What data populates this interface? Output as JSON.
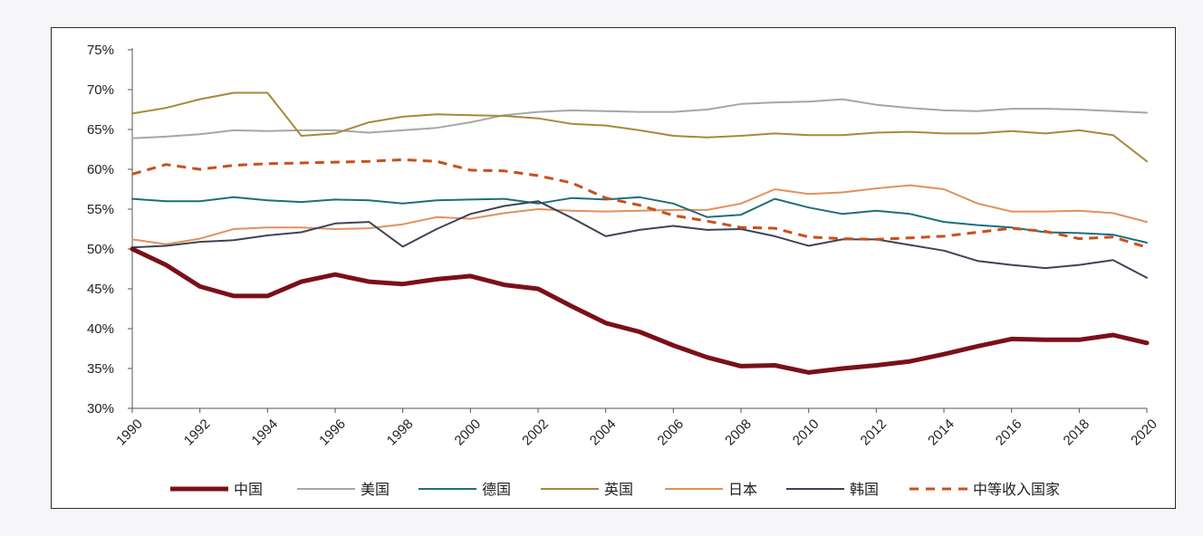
{
  "chart_data": {
    "type": "line",
    "title": "",
    "xlabel": "",
    "ylabel": "",
    "x": [
      1990,
      1991,
      1992,
      1993,
      1994,
      1995,
      1996,
      1997,
      1998,
      1999,
      2000,
      2001,
      2002,
      2003,
      2004,
      2005,
      2006,
      2007,
      2008,
      2009,
      2010,
      2011,
      2012,
      2013,
      2014,
      2015,
      2016,
      2017,
      2018,
      2019,
      2020
    ],
    "xticks": [
      "1990",
      "1992",
      "1994",
      "1996",
      "1998",
      "2000",
      "2002",
      "2004",
      "2006",
      "2008",
      "2010",
      "2012",
      "2014",
      "2016",
      "2018",
      "2020"
    ],
    "xlim": [
      1990,
      2020
    ],
    "yticks": [
      "30%",
      "35%",
      "40%",
      "45%",
      "50%",
      "55%",
      "60%",
      "65%",
      "70%",
      "75%"
    ],
    "ylim": [
      30,
      75
    ],
    "grid": false,
    "legend_position": "bottom",
    "series": [
      {
        "name": "中国",
        "color": "#7a1018",
        "width": 5,
        "dash": "",
        "values": [
          50.0,
          48.0,
          45.3,
          44.1,
          44.1,
          45.9,
          46.8,
          45.9,
          45.6,
          46.2,
          46.6,
          45.5,
          45.0,
          42.8,
          40.7,
          39.6,
          37.9,
          36.4,
          35.3,
          35.4,
          34.5,
          35.0,
          35.4,
          35.9,
          36.8,
          37.8,
          38.7,
          38.6,
          38.6,
          39.2,
          38.2
        ]
      },
      {
        "name": "美国",
        "color": "#a6a6a6",
        "width": 2,
        "dash": "",
        "values": [
          63.9,
          64.1,
          64.4,
          64.9,
          64.8,
          64.9,
          64.9,
          64.6,
          64.9,
          65.2,
          65.9,
          66.8,
          67.2,
          67.4,
          67.3,
          67.2,
          67.2,
          67.5,
          68.2,
          68.4,
          68.5,
          68.8,
          68.1,
          67.7,
          67.4,
          67.3,
          67.6,
          67.6,
          67.5,
          67.3,
          67.1
        ]
      },
      {
        "name": "德国",
        "color": "#1e6e7c",
        "width": 2,
        "dash": "",
        "values": [
          56.3,
          56.0,
          56.0,
          56.5,
          56.1,
          55.9,
          56.2,
          56.1,
          55.7,
          56.1,
          56.2,
          56.3,
          55.7,
          56.4,
          56.2,
          56.5,
          55.7,
          54.0,
          54.3,
          56.3,
          55.2,
          54.4,
          54.8,
          54.4,
          53.4,
          53.0,
          52.7,
          52.1,
          52.0,
          51.8,
          50.8
        ]
      },
      {
        "name": "英国",
        "color": "#a8893a",
        "width": 2,
        "dash": "",
        "values": [
          67.0,
          67.7,
          68.8,
          69.6,
          69.6,
          64.2,
          64.5,
          65.9,
          66.6,
          66.9,
          66.8,
          66.7,
          66.4,
          65.7,
          65.5,
          64.9,
          64.2,
          64.0,
          64.2,
          64.5,
          64.3,
          64.3,
          64.6,
          64.7,
          64.5,
          64.5,
          64.8,
          64.5,
          64.9,
          64.3,
          61.0
        ]
      },
      {
        "name": "日本",
        "color": "#e0915c",
        "width": 2,
        "dash": "",
        "values": [
          51.2,
          50.6,
          51.3,
          52.5,
          52.7,
          52.7,
          52.5,
          52.6,
          53.1,
          54.0,
          53.8,
          54.5,
          55.0,
          54.8,
          54.7,
          54.8,
          54.9,
          54.9,
          55.7,
          57.5,
          56.9,
          57.1,
          57.6,
          58.0,
          57.5,
          55.7,
          54.7,
          54.7,
          54.8,
          54.5,
          53.4
        ]
      },
      {
        "name": "韩国",
        "color": "#3d4454",
        "width": 2,
        "dash": "",
        "values": [
          50.2,
          50.4,
          50.9,
          51.1,
          51.7,
          52.1,
          53.2,
          53.4,
          50.3,
          52.5,
          54.4,
          55.4,
          56.0,
          53.9,
          51.6,
          52.4,
          52.9,
          52.4,
          52.5,
          51.6,
          50.4,
          51.2,
          51.2,
          50.5,
          49.8,
          48.5,
          48.0,
          47.6,
          48.0,
          48.6,
          46.4
        ]
      },
      {
        "name": "中等收入国家",
        "color": "#c8501c",
        "width": 3,
        "dash": "10,7",
        "values": [
          59.4,
          60.6,
          60.0,
          60.5,
          60.7,
          60.8,
          60.9,
          61.0,
          61.2,
          61.0,
          59.9,
          59.8,
          59.2,
          58.3,
          56.4,
          55.5,
          54.2,
          53.5,
          52.7,
          52.6,
          51.5,
          51.3,
          51.2,
          51.4,
          51.6,
          52.1,
          52.6,
          52.2,
          51.3,
          51.5,
          50.2
        ]
      }
    ]
  }
}
